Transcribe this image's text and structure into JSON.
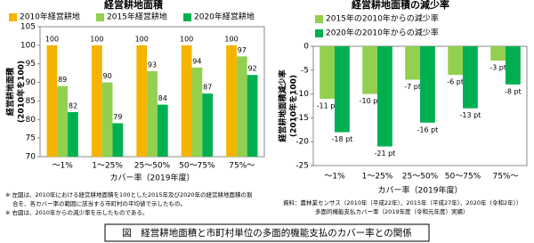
{
  "chart_data": [
    {
      "type": "bar",
      "title": "経営耕地面積",
      "categories": [
        "～1%",
        "1～25%",
        "25～50%",
        "50～75%",
        "75%～"
      ],
      "series": [
        {
          "name": "2010年経営耕地",
          "color": "#f5b400",
          "values": [
            100,
            100,
            100,
            100,
            100
          ]
        },
        {
          "name": "2015年経営耕地",
          "color": "#92d050",
          "values": [
            89,
            90,
            93,
            94,
            97
          ]
        },
        {
          "name": "2020年経営耕地",
          "color": "#00b050",
          "values": [
            82,
            79,
            84,
            87,
            92
          ]
        }
      ],
      "ylim": [
        70,
        105
      ],
      "yticks": [
        70,
        75,
        80,
        85,
        90,
        95,
        100,
        105
      ],
      "ylabel": [
        "経営耕地面積",
        "(2010年を100)"
      ],
      "xlabel": "カバー率（2019年度）",
      "grid": false
    },
    {
      "type": "bar",
      "title": "経営耕地面積の減少率",
      "categories": [
        "～1%",
        "1～25%",
        "25～50%",
        "50～75%",
        "75%～"
      ],
      "series": [
        {
          "name": "2015年の2010年からの減少率",
          "color": "#92d050",
          "values": [
            -11,
            -10,
            -7,
            -6,
            -3
          ],
          "value_labels": [
            "-11 pt",
            "-10 pt",
            "-7 pt",
            "-6 pt",
            "-3 pt"
          ]
        },
        {
          "name": "2020年の2010年からの減少率",
          "color": "#00b050",
          "values": [
            -18,
            -21,
            -16,
            -13,
            -8
          ],
          "value_labels": [
            "-18 pt",
            "-21 pt",
            "-16 pt",
            "-13 pt",
            "-8 pt"
          ]
        }
      ],
      "ylim": [
        -25,
        0
      ],
      "yticks": [
        -25,
        -20,
        -15,
        -10,
        -5,
        0
      ],
      "ylabel": [
        "経営耕地面積減少率",
        "(2010年を100)"
      ],
      "xlabel": "カバー率（2019年度）",
      "grid": false
    }
  ],
  "notes": [
    "※ 左図は、2010年における経営耕地面積を100とした2015年及び2020年の経営耕地面積の割",
    "合を、各カバー率の範囲に該当する市町村の平均値で示したもの。",
    "※ 右図は、2010年からの減少率を示したものである。"
  ],
  "source": [
    "資料：農林業センサス（2010年（平成22年）、2015年（平成27年）、2020年（令和2年））",
    "多面的機能支払カバー率（2019年度（令和元年度）実績）"
  ],
  "caption": "図　経営耕地面積と市町村単位の多面的機能支払のカバー率との関係"
}
